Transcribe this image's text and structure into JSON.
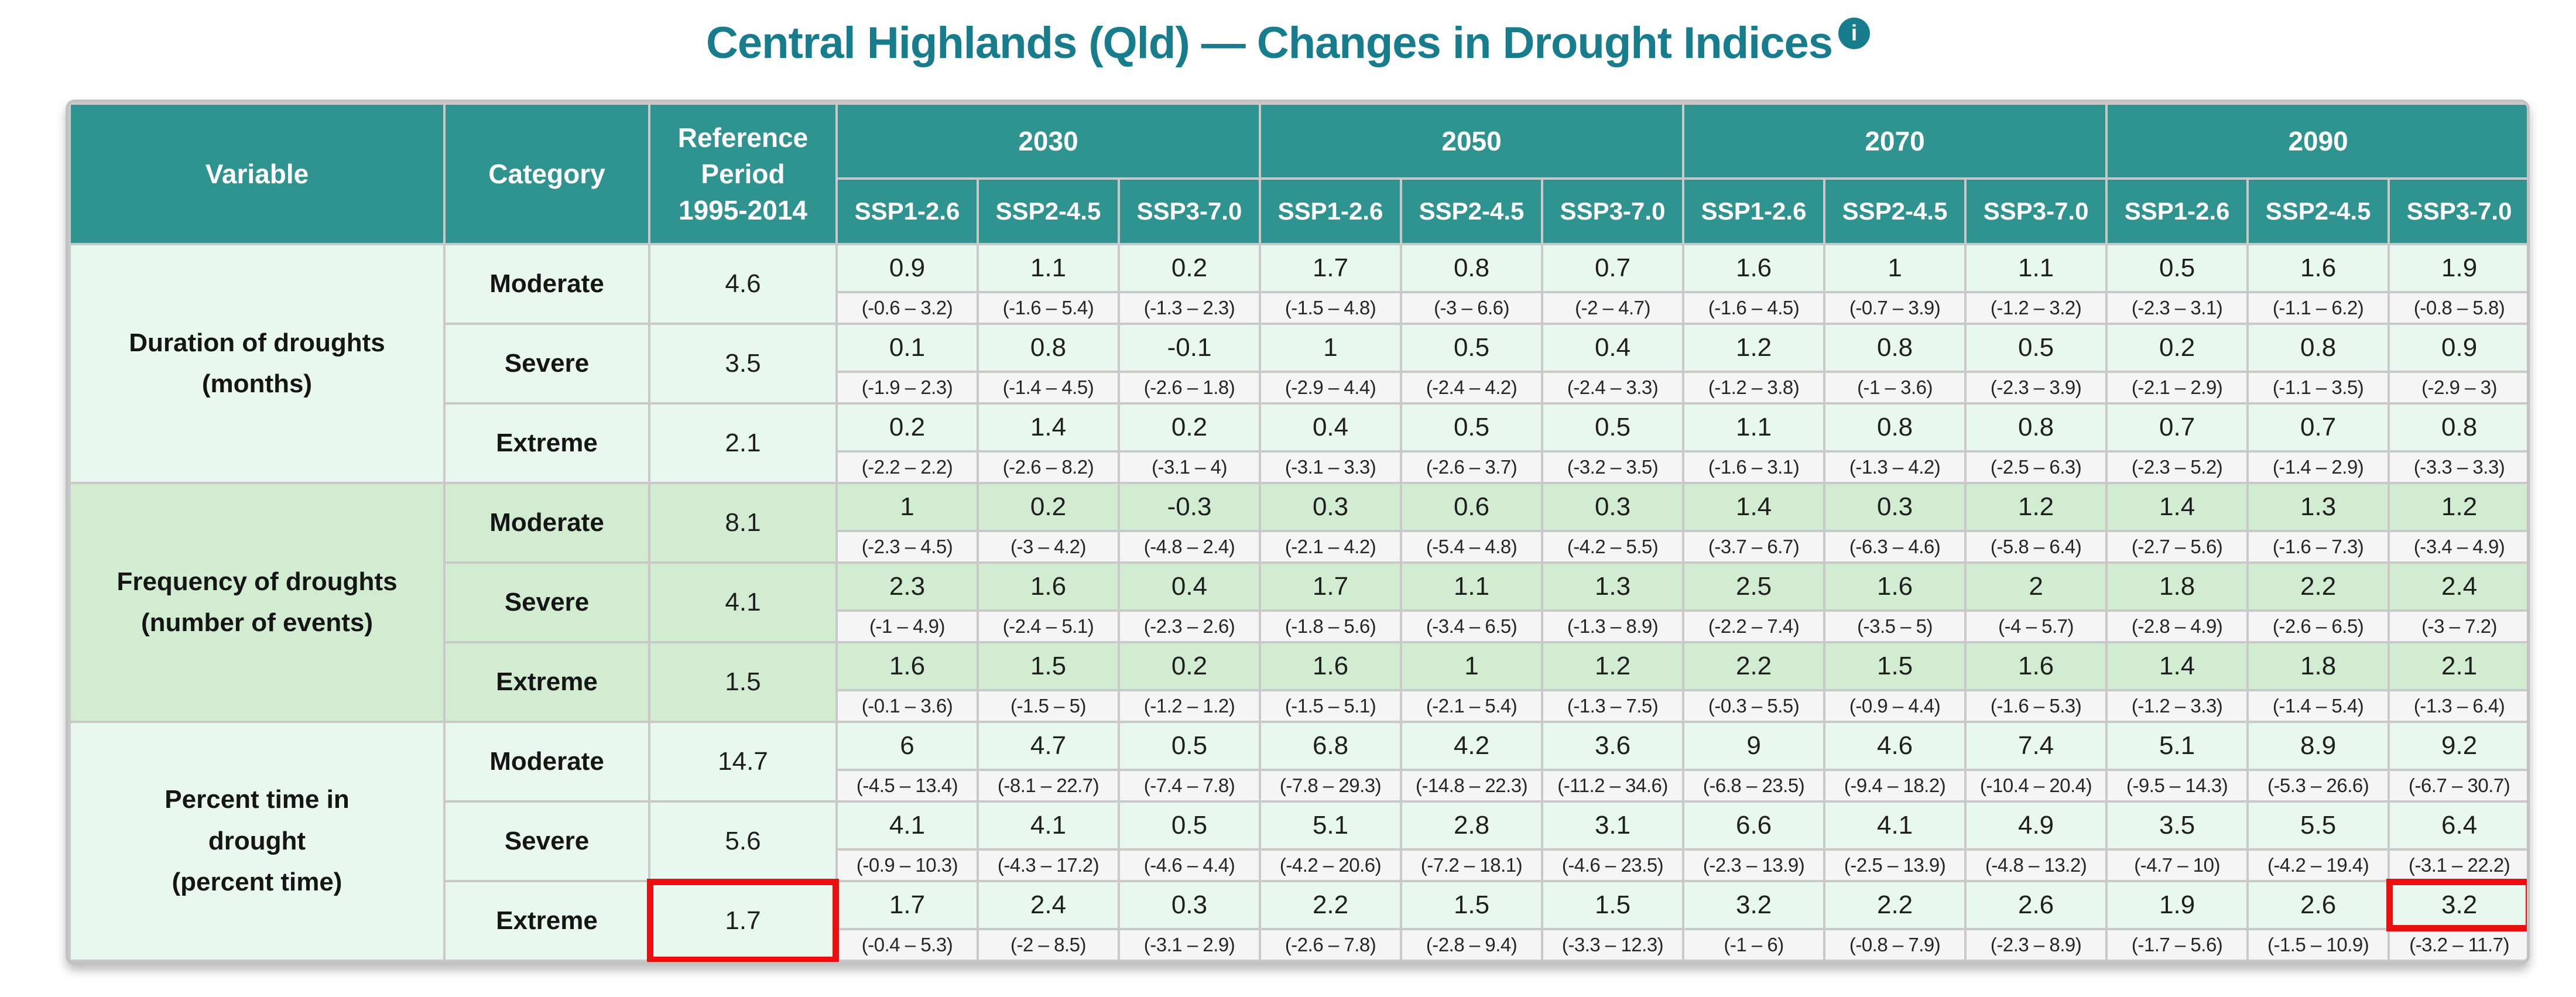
{
  "title": "Central Highlands (Qld) — Changes in Drought Indices",
  "info_icon_glyph": "i",
  "header": {
    "variable": "Variable",
    "category": "Category",
    "reference_lines": [
      "Reference",
      "Period",
      "1995-2014"
    ]
  },
  "colors": {
    "header_teal": "#2f948f",
    "title_teal": "#177d8c",
    "block_light_green": "#e9f8ee",
    "block_medium_green": "#d2ecd2",
    "range_gray": "#f5f5f5",
    "grid_line": "#c9c9c9",
    "highlight_red": "#eb1010"
  },
  "chart_data": {
    "type": "table",
    "title": "Central Highlands (Qld) — Changes in Drought Indices",
    "years": [
      "2030",
      "2050",
      "2070",
      "2090"
    ],
    "scenarios": [
      "SSP1-2.6",
      "SSP2-4.5",
      "SSP3-7.0"
    ],
    "reference_period": "1995-2014",
    "column_order_note": "values/ranges arrays are ordered 2030 SSP1-2.6, SSP2-4.5, SSP3-7.0, then 2050, 2070, 2090",
    "groups": [
      {
        "variable_lines": [
          "Duration of droughts",
          "(months)"
        ],
        "shade": "light",
        "rows": [
          {
            "category": "Moderate",
            "reference": "4.6",
            "values": [
              "0.9",
              "1.1",
              "0.2",
              "1.7",
              "0.8",
              "0.7",
              "1.6",
              "1",
              "1.1",
              "0.5",
              "1.6",
              "1.9"
            ],
            "ranges": [
              "(-0.6 – 3.2)",
              "(-1.6 – 5.4)",
              "(-1.3 – 2.3)",
              "(-1.5 – 4.8)",
              "(-3 – 6.6)",
              "(-2 – 4.7)",
              "(-1.6 – 4.5)",
              "(-0.7 – 3.9)",
              "(-1.2 – 3.2)",
              "(-2.3 – 3.1)",
              "(-1.1 – 6.2)",
              "(-0.8 – 5.8)"
            ]
          },
          {
            "category": "Severe",
            "reference": "3.5",
            "values": [
              "0.1",
              "0.8",
              "-0.1",
              "1",
              "0.5",
              "0.4",
              "1.2",
              "0.8",
              "0.5",
              "0.2",
              "0.8",
              "0.9"
            ],
            "ranges": [
              "(-1.9 – 2.3)",
              "(-1.4 – 4.5)",
              "(-2.6 – 1.8)",
              "(-2.9 – 4.4)",
              "(-2.4 – 4.2)",
              "(-2.4 – 3.3)",
              "(-1.2 – 3.8)",
              "(-1 – 3.6)",
              "(-2.3 – 3.9)",
              "(-2.1 – 2.9)",
              "(-1.1 – 3.5)",
              "(-2.9 – 3)"
            ]
          },
          {
            "category": "Extreme",
            "reference": "2.1",
            "values": [
              "0.2",
              "1.4",
              "0.2",
              "0.4",
              "0.5",
              "0.5",
              "1.1",
              "0.8",
              "0.8",
              "0.7",
              "0.7",
              "0.8"
            ],
            "ranges": [
              "(-2.2 – 2.2)",
              "(-2.6 – 8.2)",
              "(-3.1 – 4)",
              "(-3.1 – 3.3)",
              "(-2.6 – 3.7)",
              "(-3.2 – 3.5)",
              "(-1.6 – 3.1)",
              "(-1.3 – 4.2)",
              "(-2.5 – 6.3)",
              "(-2.3 – 5.2)",
              "(-1.4 – 2.9)",
              "(-3.3 – 3.3)"
            ]
          }
        ]
      },
      {
        "variable_lines": [
          "Frequency of droughts",
          "(number of events)"
        ],
        "shade": "medium",
        "rows": [
          {
            "category": "Moderate",
            "reference": "8.1",
            "values": [
              "1",
              "0.2",
              "-0.3",
              "0.3",
              "0.6",
              "0.3",
              "1.4",
              "0.3",
              "1.2",
              "1.4",
              "1.3",
              "1.2"
            ],
            "ranges": [
              "(-2.3 – 4.5)",
              "(-3 – 4.2)",
              "(-4.8 – 2.4)",
              "(-2.1 – 4.2)",
              "(-5.4 – 4.8)",
              "(-4.2 – 5.5)",
              "(-3.7 – 6.7)",
              "(-6.3 – 4.6)",
              "(-5.8 – 6.4)",
              "(-2.7 – 5.6)",
              "(-1.6 – 7.3)",
              "(-3.4 – 4.9)"
            ]
          },
          {
            "category": "Severe",
            "reference": "4.1",
            "values": [
              "2.3",
              "1.6",
              "0.4",
              "1.7",
              "1.1",
              "1.3",
              "2.5",
              "1.6",
              "2",
              "1.8",
              "2.2",
              "2.4"
            ],
            "ranges": [
              "(-1 – 4.9)",
              "(-2.4 – 5.1)",
              "(-2.3 – 2.6)",
              "(-1.8 – 5.6)",
              "(-3.4 – 6.5)",
              "(-1.3 – 8.9)",
              "(-2.2 – 7.4)",
              "(-3.5 – 5)",
              "(-4 – 5.7)",
              "(-2.8 – 4.9)",
              "(-2.6 – 6.5)",
              "(-3 – 7.2)"
            ]
          },
          {
            "category": "Extreme",
            "reference": "1.5",
            "values": [
              "1.6",
              "1.5",
              "0.2",
              "1.6",
              "1",
              "1.2",
              "2.2",
              "1.5",
              "1.6",
              "1.4",
              "1.8",
              "2.1"
            ],
            "ranges": [
              "(-0.1 – 3.6)",
              "(-1.5 – 5)",
              "(-1.2 – 1.2)",
              "(-1.5 – 5.1)",
              "(-2.1 – 5.4)",
              "(-1.3 – 7.5)",
              "(-0.3 – 5.5)",
              "(-0.9 – 4.4)",
              "(-1.6 – 5.3)",
              "(-1.2 – 3.3)",
              "(-1.4 – 5.4)",
              "(-1.3 – 6.4)"
            ]
          }
        ]
      },
      {
        "variable_lines": [
          "Percent time in",
          "drought",
          "(percent time)"
        ],
        "shade": "light",
        "rows": [
          {
            "category": "Moderate",
            "reference": "14.7",
            "values": [
              "6",
              "4.7",
              "0.5",
              "6.8",
              "4.2",
              "3.6",
              "9",
              "4.6",
              "7.4",
              "5.1",
              "8.9",
              "9.2"
            ],
            "ranges": [
              "(-4.5 – 13.4)",
              "(-8.1 – 22.7)",
              "(-7.4 – 7.8)",
              "(-7.8 – 29.3)",
              "(-14.8 – 22.3)",
              "(-11.2 – 34.6)",
              "(-6.8 – 23.5)",
              "(-9.4 – 18.2)",
              "(-10.4 – 20.4)",
              "(-9.5 – 14.3)",
              "(-5.3 – 26.6)",
              "(-6.7 – 30.7)"
            ]
          },
          {
            "category": "Severe",
            "reference": "5.6",
            "values": [
              "4.1",
              "4.1",
              "0.5",
              "5.1",
              "2.8",
              "3.1",
              "6.6",
              "4.1",
              "4.9",
              "3.5",
              "5.5",
              "6.4"
            ],
            "ranges": [
              "(-0.9 – 10.3)",
              "(-4.3 – 17.2)",
              "(-4.6 – 4.4)",
              "(-4.2 – 20.6)",
              "(-7.2 – 18.1)",
              "(-4.6 – 23.5)",
              "(-2.3 – 13.9)",
              "(-2.5 – 13.9)",
              "(-4.8 – 13.2)",
              "(-4.7 – 10)",
              "(-4.2 – 19.4)",
              "(-3.1 – 22.2)"
            ]
          },
          {
            "category": "Extreme",
            "reference": "1.7",
            "reference_highlight": true,
            "value_highlight_index": 11,
            "values": [
              "1.7",
              "2.4",
              "0.3",
              "2.2",
              "1.5",
              "1.5",
              "3.2",
              "2.2",
              "2.6",
              "1.9",
              "2.6",
              "3.2"
            ],
            "ranges": [
              "(-0.4 – 5.3)",
              "(-2 – 8.5)",
              "(-3.1 – 2.9)",
              "(-2.6 – 7.8)",
              "(-2.8 – 9.4)",
              "(-3.3 – 12.3)",
              "(-1 – 6)",
              "(-0.8 – 7.9)",
              "(-2.3 – 8.9)",
              "(-1.7 – 5.6)",
              "(-1.5 – 10.9)",
              "(-3.2 – 11.7)"
            ]
          }
        ]
      }
    ]
  }
}
